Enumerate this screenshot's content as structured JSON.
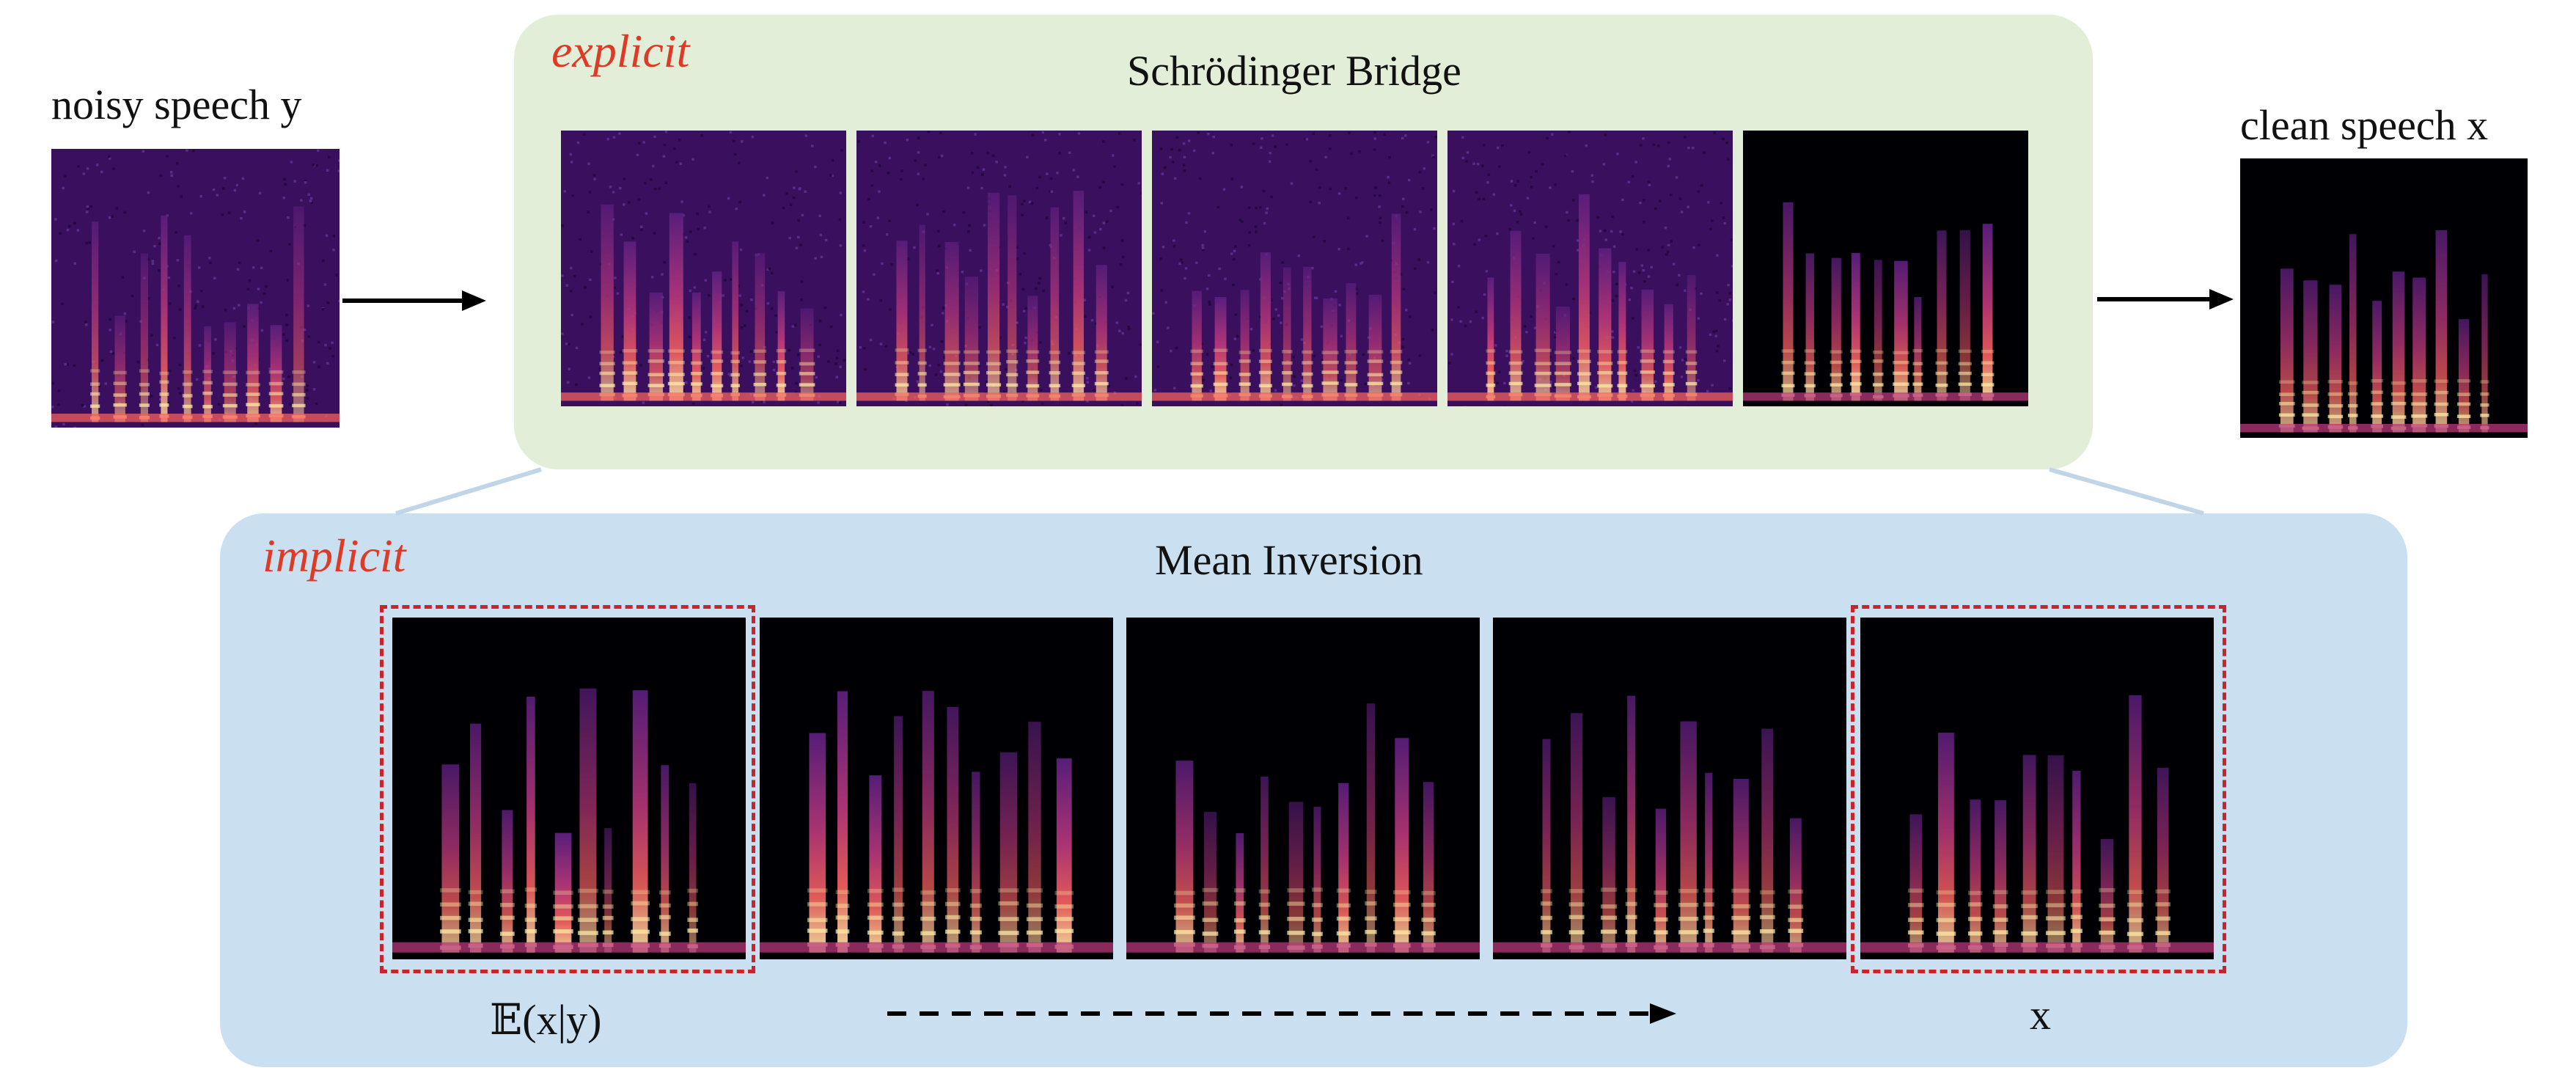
{
  "left": {
    "label": "noisy speech y"
  },
  "right": {
    "label": "clean speech x"
  },
  "explicit": {
    "tag": "explicit",
    "title": "Schrödinger Bridge"
  },
  "implicit": {
    "tag": "implicit",
    "title": "Mean Inversion",
    "start_label": "𝔼(x|y)",
    "end_label": "x"
  },
  "colors": {
    "explicit_bg": "#e3eed8",
    "implicit_bg": "#cadff0",
    "tag_red": "#dd3b25",
    "dash_red": "#c8242b",
    "spectrogram_noisy": "#3a0f5e",
    "spectrogram_clean": "#000004",
    "spectrogram_hot": "#fde9a6"
  }
}
